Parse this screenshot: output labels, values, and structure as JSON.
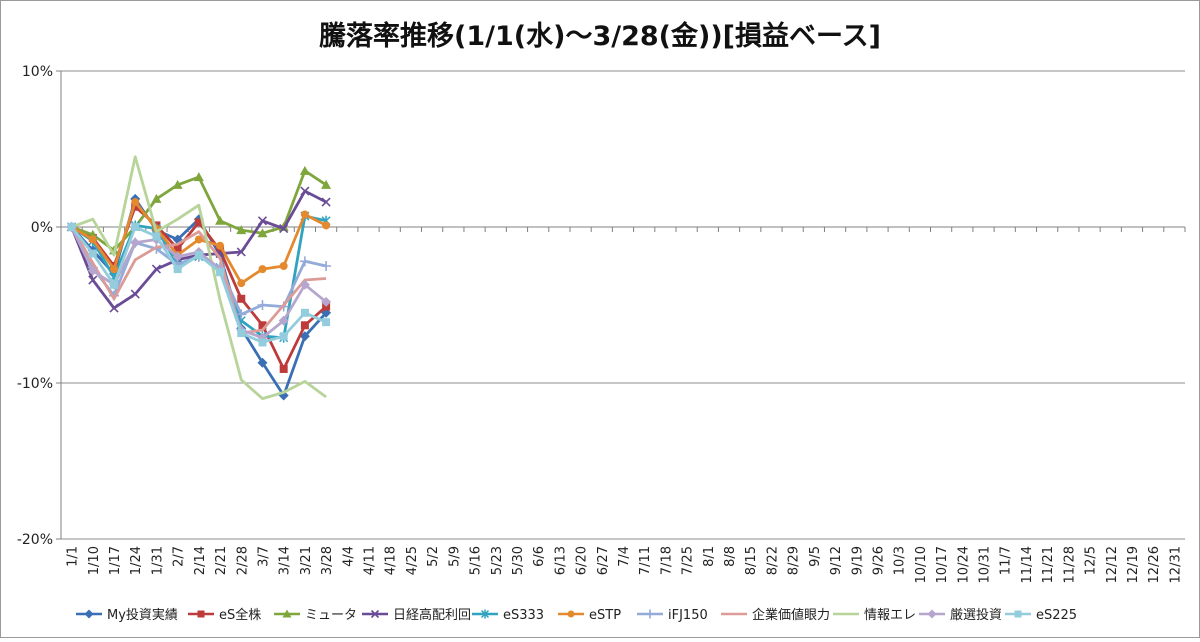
{
  "chart_data": {
    "type": "line",
    "title": "騰落率推移(1/1(水)～3/28(金))[損益ベース]",
    "y_axis": {
      "min": -20,
      "max": 10,
      "ticks": [
        "10%",
        "0%",
        "-10%",
        "-20%"
      ],
      "tick_values": [
        10,
        0,
        -10,
        -20
      ],
      "unit": "%"
    },
    "grid": "horizontal-major",
    "legend_position": "bottom",
    "x_categories": [
      "1/1",
      "1/10",
      "1/17",
      "1/24",
      "1/31",
      "2/7",
      "2/14",
      "2/21",
      "2/28",
      "3/7",
      "3/14",
      "3/21",
      "3/28",
      "4/4",
      "4/11",
      "4/18",
      "4/25",
      "5/2",
      "5/9",
      "5/16",
      "5/23",
      "5/30",
      "6/6",
      "6/13",
      "6/20",
      "6/27",
      "7/4",
      "7/11",
      "7/18",
      "7/25",
      "8/1",
      "8/8",
      "8/15",
      "8/22",
      "8/29",
      "9/5",
      "9/12",
      "9/19",
      "9/26",
      "10/3",
      "10/10",
      "10/17",
      "10/24",
      "10/31",
      "11/7",
      "11/14",
      "11/21",
      "11/28",
      "12/5",
      "12/12",
      "12/19",
      "12/26",
      "12/31"
    ],
    "series": [
      {
        "name": "My投資実績",
        "color": "#3a6fb5",
        "marker": "diamond",
        "values": [
          0,
          -1.5,
          -3.0,
          1.8,
          -0.2,
          -0.8,
          0.5,
          -1.8,
          -6.5,
          -8.7,
          -10.8,
          -7.0,
          -5.5
        ]
      },
      {
        "name": "eS全株",
        "color": "#be3b3b",
        "marker": "square",
        "values": [
          0,
          -0.7,
          -2.5,
          1.3,
          0.1,
          -1.4,
          0.3,
          -1.5,
          -4.6,
          -6.3,
          -9.1,
          -6.3,
          -5.1
        ]
      },
      {
        "name": "ミュータ",
        "color": "#7fa63c",
        "marker": "triangle",
        "values": [
          0,
          -0.5,
          -1.5,
          0.0,
          1.8,
          2.7,
          3.2,
          0.4,
          -0.2,
          -0.4,
          0.0,
          3.6,
          2.7
        ]
      },
      {
        "name": "日経高配利回",
        "color": "#6a4c96",
        "marker": "x",
        "values": [
          0,
          -3.4,
          -5.2,
          -4.3,
          -2.7,
          -2.1,
          -1.8,
          -1.7,
          -1.6,
          0.4,
          -0.1,
          2.3,
          1.6
        ]
      },
      {
        "name": "eS333",
        "color": "#2fa3bf",
        "marker": "star",
        "values": [
          0,
          -0.9,
          -3.2,
          0.1,
          -0.1,
          -2.4,
          -1.9,
          -2.6,
          -6.0,
          -7.0,
          -7.1,
          0.7,
          0.4
        ]
      },
      {
        "name": "eSTP",
        "color": "#e5892e",
        "marker": "circle",
        "values": [
          0,
          -0.8,
          -2.7,
          1.6,
          -0.1,
          -1.8,
          -0.8,
          -1.2,
          -3.6,
          -2.7,
          -2.5,
          0.8,
          0.1
        ]
      },
      {
        "name": "iFJ150",
        "color": "#93abd8",
        "marker": "plus",
        "values": [
          0,
          -2.6,
          -4.4,
          -1.0,
          -1.4,
          -2.4,
          -1.9,
          -2.6,
          -5.6,
          -5.0,
          -5.1,
          -2.2,
          -2.5
        ]
      },
      {
        "name": "企業価値眼力",
        "color": "#dd9b97",
        "marker": "none",
        "values": [
          0,
          -2.3,
          -4.6,
          -2.1,
          -1.3,
          -1.1,
          -0.3,
          -2.0,
          -6.8,
          -6.6,
          -5.0,
          -3.4,
          -3.3
        ]
      },
      {
        "name": "情報エレ",
        "color": "#b7d49a",
        "marker": "none",
        "values": [
          0,
          0.5,
          -1.8,
          4.5,
          -0.3,
          0.5,
          1.4,
          -4.7,
          -9.8,
          -11.0,
          -10.6,
          -9.9,
          -10.9
        ]
      },
      {
        "name": "厳選投資",
        "color": "#b6a6cd",
        "marker": "diamond",
        "values": [
          0,
          -2.8,
          -3.7,
          -1.0,
          -0.8,
          -1.9,
          -1.6,
          -2.7,
          -6.6,
          -7.1,
          -6.0,
          -3.7,
          -4.8
        ]
      },
      {
        "name": "eS225",
        "color": "#93cddd",
        "marker": "square",
        "values": [
          0,
          -1.7,
          -3.7,
          0.0,
          -0.6,
          -2.7,
          -1.8,
          -2.9,
          -6.8,
          -7.4,
          -7.0,
          -5.5,
          -6.1
        ]
      }
    ]
  }
}
